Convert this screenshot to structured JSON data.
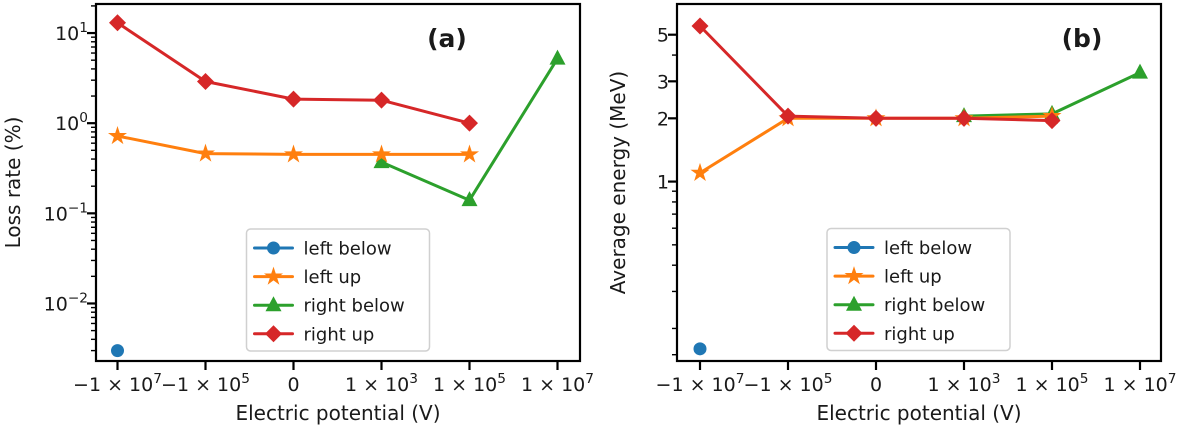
{
  "figure": {
    "background": "#ffffff",
    "text_color": "#1a1a1a",
    "spine_color": "#000000",
    "legend_border_color": "#d0d0d0",
    "legend_background": "#ffffff"
  },
  "chart_data": [
    {
      "type": "line",
      "panel_label": "(a)",
      "xlabel": "Electric potential (V)",
      "ylabel": "Loss rate (%)",
      "x_scale": "category",
      "x_categories": [
        "−1 × 10^7",
        "−1 × 10^5",
        "0",
        "1 × 10^3",
        "1 × 10^5",
        "1 × 10^7"
      ],
      "x_values": [
        -10000000,
        -100000,
        0,
        1000,
        100000,
        10000000
      ],
      "y_scale": "log",
      "ylim": [
        0.0023,
        21
      ],
      "grid": false,
      "legend_position": "lower right inside",
      "y_ticks": [
        {
          "value": 10,
          "label": "10^1"
        },
        {
          "value": 1,
          "label": "10^0"
        },
        {
          "value": 0.1,
          "label": "10^−1"
        },
        {
          "value": 0.01,
          "label": "10^−2"
        }
      ],
      "series": [
        {
          "name": "left below",
          "color": "#1f77b4",
          "marker": "circle",
          "x_indices": [
            0
          ],
          "values": [
            0.003
          ]
        },
        {
          "name": "left up",
          "color": "#ff7f0e",
          "marker": "star",
          "x_indices": [
            0,
            1,
            2,
            3,
            4
          ],
          "values": [
            0.72,
            0.46,
            0.45,
            0.45,
            0.45
          ]
        },
        {
          "name": "right below",
          "color": "#2ca02c",
          "marker": "triangle",
          "x_indices": [
            3,
            4,
            5
          ],
          "values": [
            0.37,
            0.14,
            5.2
          ]
        },
        {
          "name": "right up",
          "color": "#d62728",
          "marker": "diamond",
          "x_indices": [
            0,
            1,
            2,
            3,
            4
          ],
          "values": [
            13,
            2.9,
            1.85,
            1.8,
            1.0
          ]
        }
      ]
    },
    {
      "type": "line",
      "panel_label": "(b)",
      "xlabel": "Electric potential (V)",
      "ylabel": "Average energy (MeV)",
      "x_scale": "category",
      "x_categories": [
        "−1 × 10^7",
        "−1 × 10^5",
        "0",
        "1 × 10^3",
        "1 × 10^5",
        "1 × 10^7"
      ],
      "x_values": [
        -10000000,
        -100000,
        0,
        1000,
        100000,
        10000000
      ],
      "y_scale": "log",
      "ylim": [
        0.14,
        7.0
      ],
      "grid": false,
      "legend_position": "lower right inside",
      "y_ticks": [
        {
          "value": 5,
          "label": "5"
        },
        {
          "value": 3,
          "label": "3"
        },
        {
          "value": 2,
          "label": "2"
        },
        {
          "value": 1,
          "label": "1"
        }
      ],
      "y_minor_ticks": [
        4,
        0.9,
        0.8,
        0.7,
        0.6,
        0.5,
        0.4,
        0.3,
        0.2,
        0.15
      ],
      "series": [
        {
          "name": "left below",
          "color": "#1f77b4",
          "marker": "circle",
          "x_indices": [
            0
          ],
          "values": [
            0.16
          ]
        },
        {
          "name": "left up",
          "color": "#ff7f0e",
          "marker": "star",
          "x_indices": [
            0,
            1,
            2,
            3,
            4
          ],
          "values": [
            1.1,
            2.0,
            2.0,
            2.0,
            2.05
          ]
        },
        {
          "name": "right below",
          "color": "#2ca02c",
          "marker": "triangle",
          "x_indices": [
            3,
            4,
            5
          ],
          "values": [
            2.05,
            2.1,
            3.3
          ]
        },
        {
          "name": "right up",
          "color": "#d62728",
          "marker": "diamond",
          "x_indices": [
            0,
            1,
            2,
            3,
            4
          ],
          "values": [
            5.5,
            2.05,
            2.0,
            2.0,
            1.95
          ]
        }
      ]
    }
  ]
}
